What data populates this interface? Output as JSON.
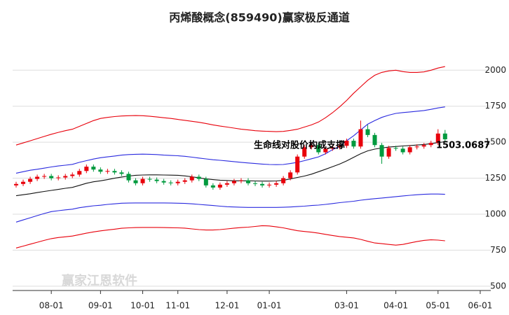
{
  "chart_data": {
    "type": "candlestick",
    "title": "丙烯酸概念(859490)赢家极反通道",
    "watermark": "赢家江恩软件",
    "annotations": [
      "生命线对股价构成支撑",
      "1503.0687"
    ],
    "categories": [
      null,
      null,
      null,
      null,
      null,
      "08-01",
      null,
      null,
      null,
      null,
      null,
      null,
      "09-01",
      null,
      null,
      null,
      null,
      null,
      "10-01",
      null,
      null,
      null,
      null,
      "11-01",
      null,
      null,
      null,
      null,
      null,
      null,
      "12-01",
      null,
      null,
      null,
      null,
      null,
      "01-01",
      null,
      null,
      null,
      null,
      null,
      null,
      null,
      null,
      null,
      null,
      "03-01",
      null,
      null,
      null,
      null,
      null,
      null,
      "04-01",
      null,
      null,
      null,
      null,
      null,
      "05-01",
      null,
      null,
      null,
      null,
      null,
      "06-01",
      null
    ],
    "open": [
      1200,
      1210,
      1225,
      1245,
      1260,
      1265,
      1250,
      1255,
      1265,
      1275,
      1300,
      1330,
      1310,
      1295,
      1300,
      1290,
      1280,
      1235,
      1215,
      1245,
      1240,
      1230,
      1220,
      1215,
      1225,
      1235,
      1260,
      1245,
      1200,
      1185,
      1205,
      1215,
      1230,
      1235,
      1215,
      1210,
      1200,
      1205,
      1215,
      1250,
      1290,
      1400,
      1465,
      1480,
      1430,
      1455,
      1465,
      1475,
      1510,
      1470,
      1590,
      1550,
      1480,
      1400,
      1460,
      1455,
      1430,
      1465,
      1470,
      1480,
      1495,
      1560,
      null,
      null,
      null,
      null,
      null,
      null
    ],
    "high": [
      1225,
      1240,
      1260,
      1275,
      1280,
      1280,
      1270,
      1280,
      1290,
      1315,
      1345,
      1345,
      1325,
      1315,
      1315,
      1305,
      1295,
      1250,
      1260,
      1260,
      1255,
      1245,
      1235,
      1240,
      1250,
      1275,
      1275,
      1260,
      1215,
      1220,
      1230,
      1245,
      1250,
      1250,
      1230,
      1225,
      1220,
      1230,
      1265,
      1305,
      1415,
      1480,
      1495,
      1495,
      1470,
      1480,
      1490,
      1525,
      1525,
      1650,
      1620,
      1565,
      1495,
      1475,
      1475,
      1470,
      1480,
      1485,
      1495,
      1510,
      1590,
      1585,
      null,
      null,
      null,
      null,
      null,
      null
    ],
    "low": [
      1185,
      1195,
      1210,
      1230,
      1245,
      1235,
      1235,
      1240,
      1250,
      1260,
      1285,
      1295,
      1280,
      1280,
      1275,
      1265,
      1220,
      1200,
      1200,
      1225,
      1215,
      1205,
      1200,
      1200,
      1210,
      1220,
      1230,
      1185,
      1170,
      1170,
      1190,
      1200,
      1215,
      1200,
      1195,
      1185,
      1185,
      1190,
      1200,
      1235,
      1275,
      1385,
      1450,
      1415,
      1415,
      1440,
      1450,
      1460,
      1455,
      1455,
      1535,
      1465,
      1350,
      1385,
      1440,
      1415,
      1415,
      1450,
      1455,
      1465,
      1480,
      1505,
      null,
      null,
      null,
      null,
      null,
      null
    ],
    "close": [
      1210,
      1225,
      1245,
      1260,
      1265,
      1250,
      1255,
      1265,
      1275,
      1300,
      1330,
      1310,
      1295,
      1300,
      1290,
      1280,
      1235,
      1215,
      1245,
      1240,
      1230,
      1220,
      1215,
      1225,
      1235,
      1260,
      1245,
      1200,
      1185,
      1205,
      1215,
      1230,
      1235,
      1215,
      1210,
      1200,
      1205,
      1215,
      1250,
      1290,
      1400,
      1465,
      1480,
      1430,
      1455,
      1465,
      1475,
      1510,
      1470,
      1590,
      1550,
      1480,
      1400,
      1460,
      1455,
      1430,
      1465,
      1470,
      1480,
      1495,
      1560,
      1520,
      null,
      null,
      null,
      null,
      null,
      null
    ],
    "up_color": "#e8000b",
    "down_color": "#009a3e",
    "series": [
      {
        "color": "#e8000b",
        "values": [
          1480,
          1495,
          1510,
          1525,
          1540,
          1555,
          1568,
          1580,
          1590,
          1610,
          1630,
          1650,
          1665,
          1672,
          1678,
          1682,
          1684,
          1685,
          1684,
          1680,
          1675,
          1670,
          1665,
          1658,
          1652,
          1645,
          1638,
          1630,
          1620,
          1612,
          1605,
          1598,
          1590,
          1585,
          1580,
          1577,
          1575,
          1573,
          1575,
          1582,
          1590,
          1605,
          1620,
          1640,
          1670,
          1705,
          1745,
          1790,
          1840,
          1885,
          1930,
          1965,
          1985,
          1995,
          2000,
          1990,
          1985,
          1985,
          1988,
          2000,
          2015,
          2025,
          null,
          null,
          null,
          null,
          null,
          null
        ]
      },
      {
        "color": "#2a2adf",
        "values": [
          1285,
          1295,
          1305,
          1312,
          1320,
          1328,
          1335,
          1340,
          1346,
          1360,
          1372,
          1383,
          1392,
          1398,
          1404,
          1410,
          1414,
          1416,
          1417,
          1416,
          1414,
          1410,
          1408,
          1406,
          1402,
          1396,
          1390,
          1384,
          1378,
          1374,
          1370,
          1365,
          1360,
          1356,
          1352,
          1348,
          1345,
          1344,
          1345,
          1352,
          1360,
          1372,
          1385,
          1398,
          1420,
          1448,
          1472,
          1510,
          1545,
          1585,
          1625,
          1650,
          1672,
          1688,
          1700,
          1706,
          1710,
          1715,
          1720,
          1728,
          1738,
          1745,
          null,
          null,
          null,
          null,
          null,
          null
        ]
      },
      {
        "color": "#111111",
        "values": [
          1128,
          1135,
          1142,
          1150,
          1158,
          1165,
          1172,
          1180,
          1186,
          1200,
          1215,
          1225,
          1232,
          1240,
          1250,
          1258,
          1265,
          1270,
          1272,
          1273,
          1273,
          1272,
          1271,
          1270,
          1266,
          1260,
          1252,
          1245,
          1240,
          1236,
          1234,
          1232,
          1232,
          1232,
          1231,
          1230,
          1230,
          1231,
          1235,
          1245,
          1255,
          1265,
          1278,
          1295,
          1312,
          1330,
          1348,
          1370,
          1395,
          1420,
          1440,
          1452,
          1460,
          1466,
          1470,
          1474,
          1477,
          1480,
          1484,
          1490,
          1497,
          1503,
          null,
          null,
          null,
          null,
          null,
          null
        ]
      },
      {
        "color": "#2a2adf",
        "values": [
          945,
          960,
          975,
          990,
          1005,
          1018,
          1024,
          1030,
          1035,
          1045,
          1052,
          1058,
          1062,
          1068,
          1072,
          1076,
          1077,
          1078,
          1078,
          1078,
          1078,
          1078,
          1077,
          1076,
          1075,
          1072,
          1068,
          1064,
          1060,
          1056,
          1052,
          1050,
          1048,
          1047,
          1047,
          1047,
          1047,
          1047,
          1048,
          1050,
          1053,
          1056,
          1060,
          1063,
          1068,
          1074,
          1080,
          1085,
          1090,
          1097,
          1103,
          1108,
          1112,
          1117,
          1122,
          1127,
          1131,
          1135,
          1138,
          1140,
          1140,
          1138,
          null,
          null,
          null,
          null,
          null,
          null
        ]
      },
      {
        "color": "#e8000b",
        "values": [
          765,
          778,
          792,
          805,
          818,
          830,
          838,
          843,
          848,
          858,
          868,
          877,
          884,
          890,
          896,
          902,
          905,
          907,
          908,
          908,
          908,
          907,
          906,
          905,
          903,
          898,
          893,
          890,
          890,
          893,
          898,
          903,
          907,
          910,
          915,
          920,
          918,
          912,
          905,
          895,
          885,
          880,
          875,
          868,
          860,
          852,
          845,
          840,
          835,
          825,
          812,
          800,
          795,
          790,
          785,
          790,
          800,
          810,
          818,
          822,
          820,
          815,
          null,
          null,
          null,
          null,
          null,
          null
        ]
      }
    ],
    "ylim": [
      470,
      2400
    ],
    "yticks": [
      500,
      750,
      1000,
      1250,
      1500,
      1750,
      2000
    ],
    "grid": true
  }
}
